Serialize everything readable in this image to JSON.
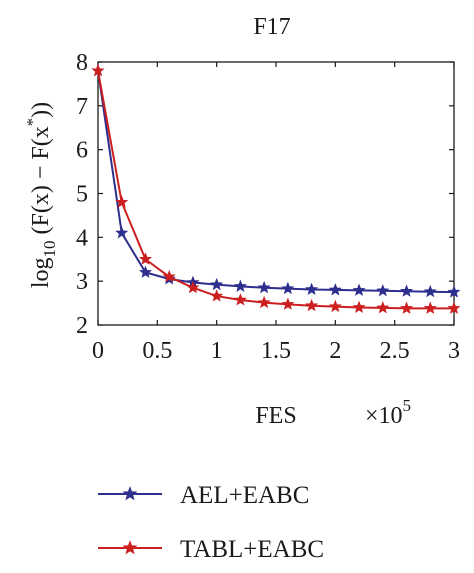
{
  "chart_data": {
    "type": "line",
    "title": "F17",
    "ylabel": {
      "prefix": "log",
      "subscript": "10",
      "body": " (F(x) − F(x",
      "sup": "*",
      "tail": "))"
    },
    "xlabel": "FES",
    "x_multiplier": {
      "base": "×10",
      "exp": "5"
    },
    "xlim": [
      0,
      3
    ],
    "ylim": [
      2,
      8
    ],
    "x_ticks": [
      0,
      0.5,
      1,
      1.5,
      2,
      2.5,
      3
    ],
    "x_tick_labels": [
      "0",
      "0.5",
      "1",
      "1.5",
      "2",
      "2.5",
      "3"
    ],
    "y_ticks": [
      2,
      3,
      4,
      5,
      6,
      7,
      8
    ],
    "y_tick_labels": [
      "2",
      "3",
      "4",
      "5",
      "6",
      "7",
      "8"
    ],
    "x": [
      0,
      0.2,
      0.4,
      0.6,
      0.8,
      1.0,
      1.2,
      1.4,
      1.6,
      1.8,
      2.0,
      2.2,
      2.4,
      2.6,
      2.8,
      3.0
    ],
    "series": [
      {
        "name": "AEL+EABC",
        "color": "#2e2e8f",
        "marker": "star",
        "values": [
          7.8,
          4.1,
          3.2,
          3.05,
          2.97,
          2.92,
          2.88,
          2.85,
          2.83,
          2.81,
          2.8,
          2.79,
          2.78,
          2.77,
          2.76,
          2.75
        ]
      },
      {
        "name": "TABL+EABC",
        "color": "#cc1f1f",
        "marker": "star",
        "values": [
          7.8,
          4.8,
          3.5,
          3.1,
          2.85,
          2.66,
          2.57,
          2.51,
          2.47,
          2.44,
          2.42,
          2.4,
          2.39,
          2.38,
          2.38,
          2.38
        ]
      }
    ],
    "grid": false,
    "legend_position": "bottom"
  }
}
